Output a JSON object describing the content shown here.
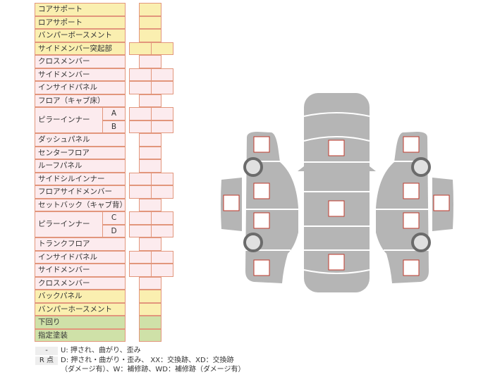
{
  "parts": [
    {
      "label": "コアサポート",
      "color": "yellow",
      "cells": 1
    },
    {
      "label": "ロアサポート",
      "color": "yellow",
      "cells": 1
    },
    {
      "label": "バンパーボースメント",
      "color": "yellow",
      "cells": 1
    },
    {
      "label": "サイドメンバー突起部",
      "color": "yellow",
      "cells": 2
    },
    {
      "label": "クロスメンバー",
      "color": "pink",
      "cells": 1
    },
    {
      "label": "サイドメンバー",
      "color": "pink",
      "cells": 2
    },
    {
      "label": "インサイドパネル",
      "color": "pink",
      "cells": 2
    },
    {
      "label": "フロア（キャブ床）",
      "color": "pink",
      "cells": 1
    },
    {
      "label": "ピラーインナー",
      "sub": "A",
      "color": "pink",
      "cells": 2
    },
    {
      "label": "",
      "sub": "B",
      "color": "pink",
      "cells": 2
    },
    {
      "label": "ダッシュパネル",
      "color": "pink",
      "cells": 1
    },
    {
      "label": "センターフロア",
      "color": "pink",
      "cells": 1
    },
    {
      "label": "ルーフパネル",
      "color": "pink",
      "cells": 1
    },
    {
      "label": "サイドシルインナー",
      "color": "pink",
      "cells": 2
    },
    {
      "label": "フロアサイドメンバー",
      "color": "pink",
      "cells": 2
    },
    {
      "label": "セットバック（キャブ背）",
      "color": "pink",
      "cells": 1
    },
    {
      "label": "ピラーインナー",
      "sub": "C",
      "color": "pink",
      "cells": 2
    },
    {
      "label": "",
      "sub": "D",
      "color": "pink",
      "cells": 2
    },
    {
      "label": "トランクフロア",
      "color": "pink",
      "cells": 1
    },
    {
      "label": "インサイドパネル",
      "color": "pink",
      "cells": 2
    },
    {
      "label": "サイドメンバー",
      "color": "pink",
      "cells": 2
    },
    {
      "label": "クロスメンバー",
      "color": "pink",
      "cells": 1
    },
    {
      "label": "バックパネル",
      "color": "yellow",
      "cells": 1
    },
    {
      "label": "バンパーホースメント",
      "color": "yellow",
      "cells": 1
    },
    {
      "label": "下回り",
      "color": "green",
      "cells": 1
    },
    {
      "label": "指定塗装",
      "color": "green",
      "cells": 1
    }
  ],
  "colors": {
    "yellow": "#faefb0",
    "pink": "#fcebee",
    "green": "#cfe1a8",
    "border": "#e2967c",
    "car": "#b5b5b5",
    "marker": "#c0392b"
  },
  "legend": {
    "key1": "-",
    "text1": "U: 押され、曲がり、歪み",
    "key2": "R 点",
    "text2": "D: 押され・曲がり・歪み、 XX：交換跡、XD：交換跡",
    "text3": "（ダメージ有）、W：補修跡、WD：補修跡（ダメージ有）"
  }
}
